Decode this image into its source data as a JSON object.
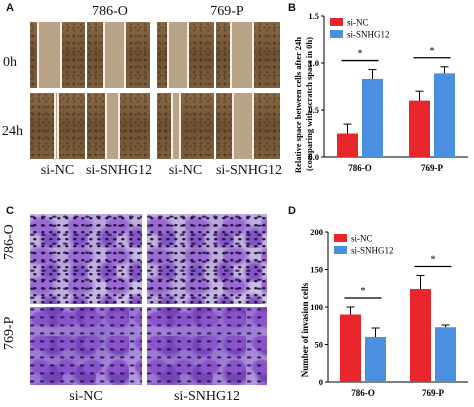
{
  "panels": {
    "A": {
      "label": "A",
      "col_groups": [
        "786-O",
        "769-P"
      ],
      "row_labels": [
        "0h",
        "24h"
      ],
      "conditions": [
        "si-NC",
        "si-SNHG12",
        "si-NC",
        "si-SNHG12"
      ]
    },
    "B": {
      "label": "B",
      "chart_data": {
        "type": "bar",
        "categories": [
          "786-O",
          "769-P"
        ],
        "series": [
          {
            "name": "si-NC",
            "color": "#e8262b",
            "values": [
              0.25,
              0.6
            ],
            "errors": [
              0.1,
              0.1
            ]
          },
          {
            "name": "si-SNHG12",
            "color": "#4a8fe0",
            "values": [
              0.83,
              0.89
            ],
            "errors": [
              0.1,
              0.07
            ]
          }
        ],
        "ylabel": "Relative space between cells after 24h (comparing with scratch space in 0h)",
        "ylabel_lines": [
          "Relative space between cells after 24h",
          "(comparing with scratch space in 0h)"
        ],
        "ylim": [
          0,
          1.5
        ],
        "yticks": [
          "0.0",
          "0.5",
          "1.0",
          "1.5"
        ],
        "significance": [
          "*",
          "*"
        ],
        "legend_position": "top-left"
      }
    },
    "C": {
      "label": "C",
      "row_labels": [
        "786-O",
        "769-P"
      ],
      "conditions": [
        "si-NC",
        "si-SNHG12"
      ]
    },
    "D": {
      "label": "D",
      "chart_data": {
        "type": "bar",
        "categories": [
          "786-O",
          "769-P"
        ],
        "series": [
          {
            "name": "si-NC",
            "color": "#e8262b",
            "values": [
              90,
              124
            ],
            "errors": [
              10,
              18
            ]
          },
          {
            "name": "si-SNHG12",
            "color": "#4a8fe0",
            "values": [
              60,
              73
            ],
            "errors": [
              12,
              3
            ]
          }
        ],
        "ylabel": "Number of invasion cells",
        "ylim": [
          0,
          200
        ],
        "yticks": [
          "0",
          "50",
          "100",
          "150",
          "200"
        ],
        "significance": [
          "*",
          "*"
        ],
        "legend_position": "top-left"
      }
    }
  }
}
